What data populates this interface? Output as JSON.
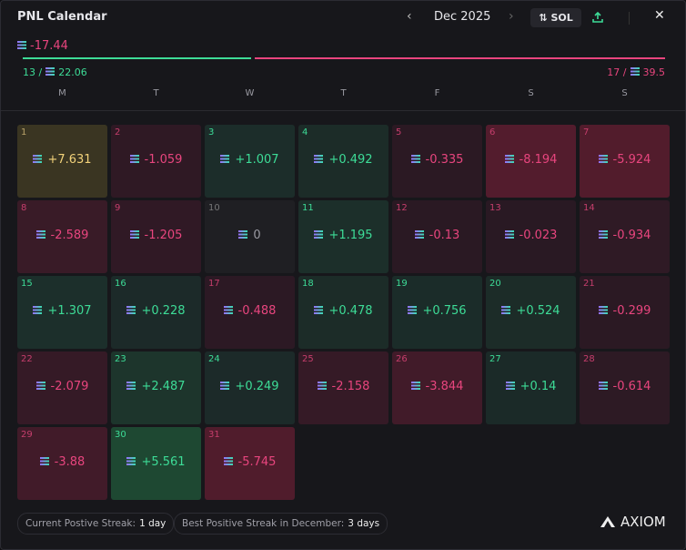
{
  "header": {
    "title": "PNL Calendar",
    "month": "Dec 2025",
    "currency": "SOL"
  },
  "summary": {
    "total": -17.44,
    "wins_label": "13 /",
    "wins_total": 22.06,
    "losses_label": "17 /",
    "losses_total": 39.5
  },
  "weekdays": [
    "M",
    "T",
    "W",
    "T",
    "F",
    "S",
    "S"
  ],
  "days": [
    {
      "day": "1",
      "value": "+7.631"
    },
    {
      "day": "2",
      "value": "-1.059"
    },
    {
      "day": "3",
      "value": "+1.007"
    },
    {
      "day": "4",
      "value": "+0.492"
    },
    {
      "day": "5",
      "value": "-0.335"
    },
    {
      "day": "6",
      "value": "-8.194"
    },
    {
      "day": "7",
      "value": "-5.924"
    },
    {
      "day": "8",
      "value": "-2.589"
    },
    {
      "day": "9",
      "value": "-1.205"
    },
    {
      "day": "10",
      "value": "0"
    },
    {
      "day": "11",
      "value": "+1.195"
    },
    {
      "day": "12",
      "value": "-0.13"
    },
    {
      "day": "13",
      "value": "-0.023"
    },
    {
      "day": "14",
      "value": "-0.934"
    },
    {
      "day": "15",
      "value": "+1.307"
    },
    {
      "day": "16",
      "value": "+0.228"
    },
    {
      "day": "17",
      "value": "-0.488"
    },
    {
      "day": "18",
      "value": "+0.478"
    },
    {
      "day": "19",
      "value": "+0.756"
    },
    {
      "day": "20",
      "value": "+0.524"
    },
    {
      "day": "21",
      "value": "-0.299"
    },
    {
      "day": "22",
      "value": "-2.079"
    },
    {
      "day": "23",
      "value": "+2.487"
    },
    {
      "day": "24",
      "value": "+0.249"
    },
    {
      "day": "25",
      "value": "-2.158"
    },
    {
      "day": "26",
      "value": "-3.844"
    },
    {
      "day": "27",
      "value": "+0.14"
    },
    {
      "day": "28",
      "value": "-0.614"
    },
    {
      "day": "29",
      "value": "-3.88"
    },
    {
      "day": "30",
      "value": "+5.561"
    },
    {
      "day": "31",
      "value": "-5.745"
    }
  ],
  "footer": {
    "current_label": "Current Postive Streak:",
    "current_value": "1 day",
    "best_label": "Best Positive Streak in December:",
    "best_value": "3 days",
    "brand": "AXIOM"
  }
}
